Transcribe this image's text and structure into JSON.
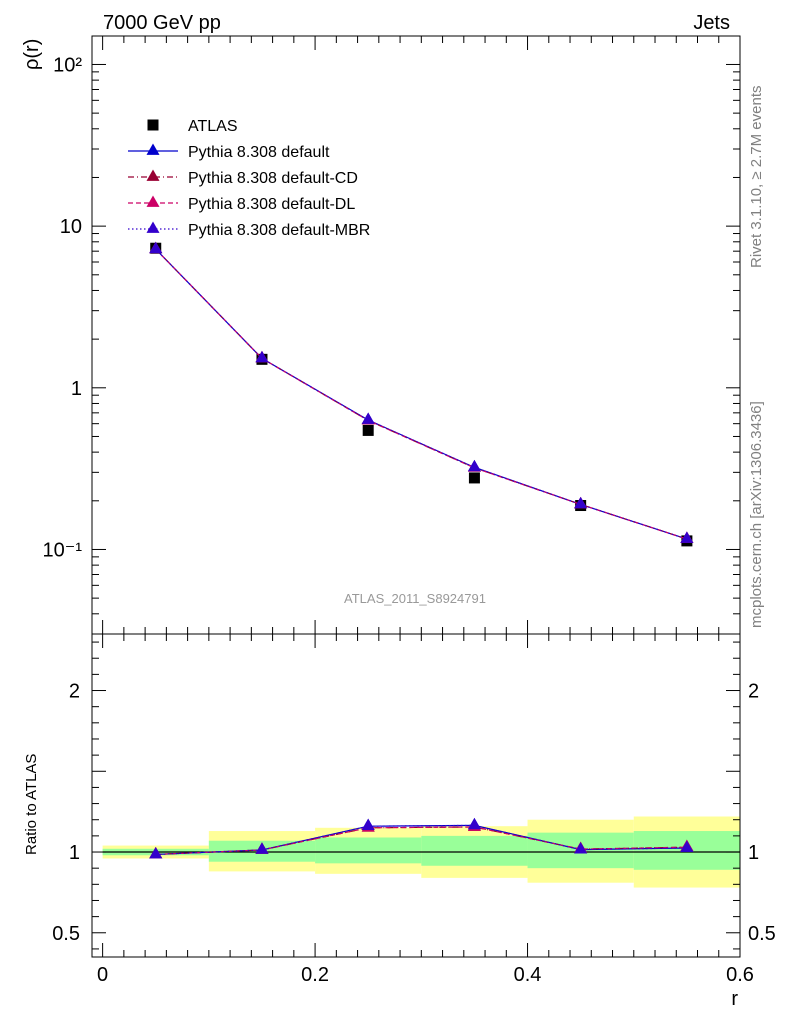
{
  "header": {
    "left": "7000 GeV pp",
    "right": "Jets"
  },
  "side_labels": {
    "rivet": "Rivet 3.1.10, ≥ 2.7M events",
    "mcplots": "mcplots.cern.ch [arXiv:1306.3436]"
  },
  "watermark": "ATLAS_2011_S8924791",
  "colors": {
    "data": "#000000",
    "default": "#0000cc",
    "cd": "#990033",
    "dl": "#cc0066",
    "mbr": "#3300cc",
    "band_inner": "#99ff99",
    "band_outer": "#ffff99"
  },
  "chart_data": [
    {
      "type": "line",
      "panel": "main",
      "ylabel": "ρ(r)",
      "xlabel": "",
      "yscale": "log",
      "xlim": [
        -0.01,
        0.6
      ],
      "ylim": [
        0.03,
        150
      ],
      "ytick_labels": [
        "10⁻¹",
        "1",
        "10",
        "10²"
      ],
      "legend_placement": "upper-left",
      "x": [
        0.05,
        0.15,
        0.25,
        0.35,
        0.45,
        0.55
      ],
      "series": [
        {
          "name": "ATLAS",
          "style": "data",
          "values": [
            7.3,
            1.5,
            0.545,
            0.277,
            0.187,
            0.113
          ]
        },
        {
          "name": "Pythia 8.308 default",
          "style": "solid",
          "values": [
            7.2,
            1.52,
            0.632,
            0.322,
            0.19,
            0.116
          ]
        },
        {
          "name": "Pythia 8.308 default-CD",
          "style": "dashdot",
          "values": [
            7.2,
            1.52,
            0.628,
            0.32,
            0.19,
            0.116
          ]
        },
        {
          "name": "Pythia 8.308 default-DL",
          "style": "dashed",
          "values": [
            7.2,
            1.52,
            0.628,
            0.32,
            0.19,
            0.116
          ]
        },
        {
          "name": "Pythia 8.308 default-MBR",
          "style": "dotted",
          "values": [
            7.2,
            1.52,
            0.632,
            0.322,
            0.19,
            0.116
          ]
        }
      ]
    },
    {
      "type": "line",
      "panel": "ratio",
      "ylabel": "Ratio to ATLAS",
      "xlabel": "r",
      "xlim": [
        -0.01,
        0.6
      ],
      "ylim": [
        0.35,
        2.35
      ],
      "ytick_labels": [
        "0.5",
        "1",
        "2"
      ],
      "xtick_labels": [
        "0",
        "0.2",
        "0.4",
        "0.6"
      ],
      "x": [
        0.05,
        0.15,
        0.25,
        0.35,
        0.45,
        0.55
      ],
      "bands": {
        "x_edges": [
          0.0,
          0.1,
          0.2,
          0.3,
          0.4,
          0.5,
          0.6
        ],
        "inner_low": [
          0.98,
          0.94,
          0.93,
          0.915,
          0.9,
          0.89
        ],
        "inner_high": [
          1.02,
          1.07,
          1.09,
          1.1,
          1.12,
          1.13
        ],
        "outer_low": [
          0.96,
          0.88,
          0.865,
          0.84,
          0.81,
          0.78
        ],
        "outer_high": [
          1.04,
          1.13,
          1.15,
          1.16,
          1.2,
          1.22
        ]
      },
      "reference": 1,
      "series": [
        {
          "name": "Pythia 8.308 default",
          "style": "solid",
          "values": [
            0.985,
            1.013,
            1.16,
            1.165,
            1.015,
            1.025
          ]
        },
        {
          "name": "Pythia 8.308 default-CD",
          "style": "dashdot",
          "values": [
            0.985,
            1.013,
            1.15,
            1.155,
            1.018,
            1.03
          ]
        },
        {
          "name": "Pythia 8.308 default-DL",
          "style": "dashed",
          "values": [
            0.985,
            1.013,
            1.15,
            1.155,
            1.018,
            1.03
          ]
        },
        {
          "name": "Pythia 8.308 default-MBR",
          "style": "dotted",
          "values": [
            0.985,
            1.013,
            1.16,
            1.165,
            1.015,
            1.025
          ]
        }
      ]
    }
  ]
}
